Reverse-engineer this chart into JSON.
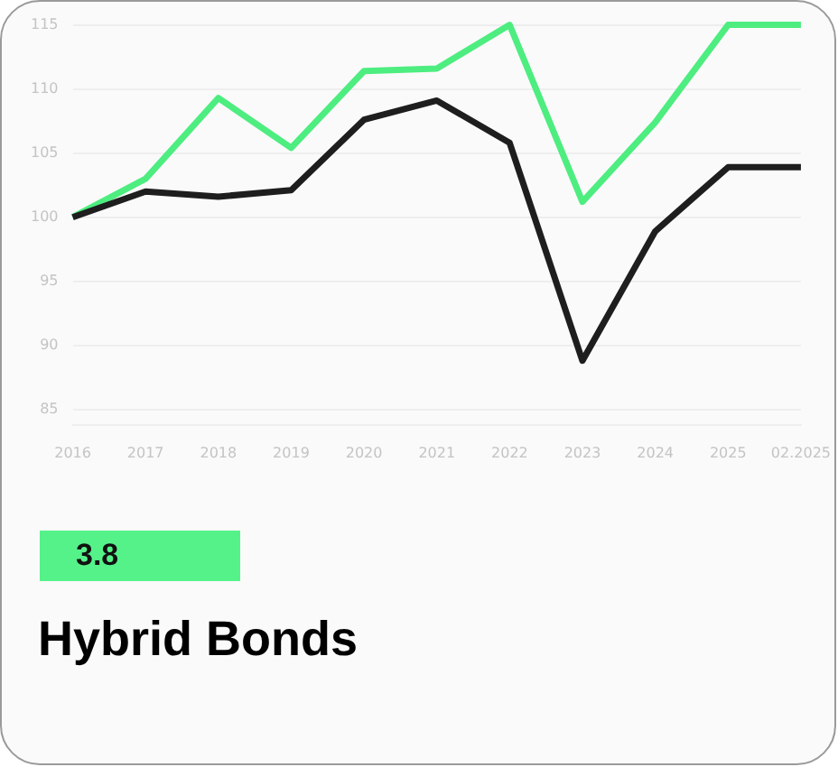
{
  "chart_data": {
    "type": "line",
    "title": "Hybrid Bonds",
    "annotations": [
      "3.8"
    ],
    "categories": [
      "2016",
      "2017",
      "2018",
      "2019",
      "2020",
      "2021",
      "2022",
      "2023",
      "2024",
      "2025",
      "02.2025"
    ],
    "series": [
      {
        "color": "#4ded80",
        "values": [
          100,
          103,
          109.3,
          105.4,
          111.4,
          111.6,
          115,
          101.2,
          107.4,
          115,
          115
        ]
      },
      {
        "color": "#1e1e1e",
        "values": [
          100,
          102,
          101.6,
          102.1,
          107.6,
          109.1,
          105.8,
          88.8,
          98.9,
          103.9,
          103.9
        ]
      }
    ],
    "ylim": [
      83.8,
      115
    ],
    "yticks": [
      85,
      90,
      95,
      100,
      105,
      110,
      115
    ],
    "grid": "y",
    "marker": "none"
  }
}
